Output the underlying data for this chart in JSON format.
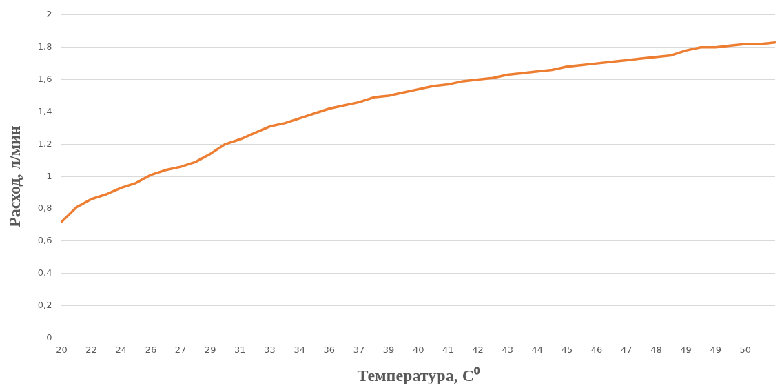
{
  "chart_data": {
    "type": "line",
    "xlabel": "Температура, C⁰",
    "ylabel": "Расход, л/мин",
    "categories": [
      "20",
      null,
      "22",
      null,
      "24",
      null,
      "26",
      null,
      "27",
      null,
      "29",
      null,
      "31",
      null,
      "33",
      null,
      "34",
      null,
      "36",
      null,
      "37",
      null,
      "39",
      null,
      "40",
      null,
      "41",
      null,
      "42",
      null,
      "43",
      null,
      "44",
      null,
      "45",
      null,
      "46",
      null,
      "47",
      null,
      "48",
      null,
      "49",
      null,
      "49",
      null,
      "50",
      null,
      null
    ],
    "series": [
      {
        "color": "#ed7d31",
        "values": [
          0.72,
          0.81,
          0.86,
          0.89,
          0.93,
          0.96,
          1.01,
          1.04,
          1.06,
          1.09,
          1.14,
          1.2,
          1.23,
          1.27,
          1.31,
          1.33,
          1.36,
          1.39,
          1.42,
          1.44,
          1.46,
          1.49,
          1.5,
          1.52,
          1.54,
          1.56,
          1.57,
          1.59,
          1.6,
          1.61,
          1.63,
          1.64,
          1.65,
          1.66,
          1.68,
          1.69,
          1.7,
          1.71,
          1.72,
          1.73,
          1.74,
          1.75,
          1.78,
          1.8,
          1.8,
          1.81,
          1.82,
          1.82,
          1.83
        ]
      }
    ],
    "ylim": [
      0,
      2
    ],
    "yticks": [
      0,
      {
        "value": 0.2,
        "label": "0,2"
      },
      {
        "value": 0.4,
        "label": "0,4"
      },
      {
        "value": 0.6,
        "label": "0,6"
      },
      {
        "value": 0.8,
        "label": "0,8"
      },
      1,
      {
        "value": 1.2,
        "label": "1,2"
      },
      {
        "value": 1.4,
        "label": "1,4"
      },
      {
        "value": 1.6,
        "label": "1,6"
      },
      {
        "value": 1.8,
        "label": "1,8"
      },
      2
    ],
    "grid": "y",
    "legend": false,
    "marker": "none",
    "line_style": "solid"
  }
}
